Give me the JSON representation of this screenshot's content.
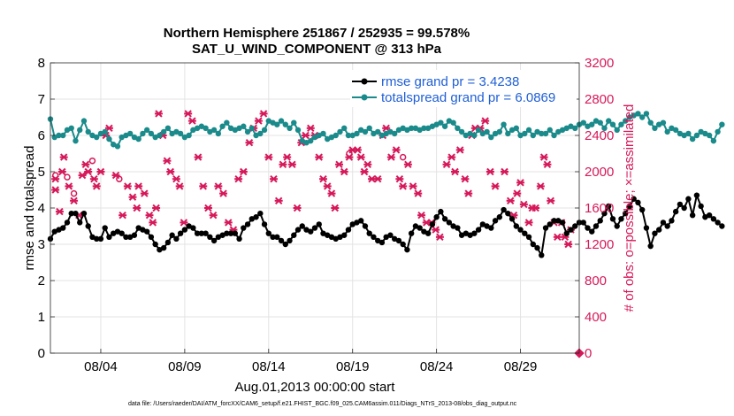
{
  "chart_data": {
    "type": "line",
    "title": "Northern Hemisphere 251867 / 252935 = 99.578%",
    "subtitle": "SAT_U_WIND_COMPONENT @ 313 hPa",
    "xlabel": "Aug.01,2013 00:00:00 start",
    "ylabel_left": "rmse and totalspread",
    "ylabel_right": "# of obs: o=possible; ×=assimilated",
    "footer": "data file: /Users/raeder/DAI/ATM_forcXX/CAM6_setup/f.e21.FHIST_BGC.f09_025.CAM6assim.011/Diags_NTrS_2013-08/obs_diag_output.nc",
    "x_ticks": [
      "08/04",
      "08/09",
      "08/14",
      "08/19",
      "08/24",
      "08/29"
    ],
    "x_tick_days": [
      4,
      9,
      14,
      19,
      24,
      29
    ],
    "x_range_days": [
      1,
      32.5
    ],
    "y_left_ticks": [
      "0",
      "1",
      "2",
      "3",
      "4",
      "5",
      "6",
      "7",
      "8"
    ],
    "y_left_range": [
      0,
      8
    ],
    "y_right_ticks": [
      "0",
      "400",
      "800",
      "1200",
      "1600",
      "2000",
      "2400",
      "2800",
      "3200"
    ],
    "y_right_range": [
      0,
      3200
    ],
    "grid": true,
    "legend_position": "top-right",
    "colors": {
      "rmse": "#000000",
      "totalspread": "#1a8a8a",
      "obs": "#d6185a"
    },
    "series": [
      {
        "name": "rmse grand pr = 3.4238",
        "axis": "left",
        "x_start": 1,
        "x_step": 0.25,
        "values": [
          3.15,
          3.35,
          3.4,
          3.45,
          3.6,
          3.85,
          3.85,
          3.6,
          3.85,
          3.5,
          3.2,
          3.15,
          3.15,
          3.45,
          3.2,
          3.3,
          3.35,
          3.3,
          3.2,
          3.2,
          3.25,
          3.45,
          3.4,
          3.35,
          3.2,
          3.0,
          2.85,
          2.9,
          3.05,
          3.25,
          3.15,
          3.3,
          3.4,
          3.5,
          3.45,
          3.3,
          3.3,
          3.3,
          3.2,
          3.1,
          3.2,
          3.25,
          3.3,
          3.3,
          3.3,
          3.15,
          3.45,
          3.55,
          3.7,
          3.75,
          3.85,
          3.55,
          3.3,
          3.2,
          3.2,
          3.1,
          3.0,
          3.1,
          3.25,
          3.4,
          3.5,
          3.4,
          3.35,
          3.45,
          3.55,
          3.3,
          3.25,
          3.2,
          3.15,
          3.2,
          3.25,
          3.4,
          3.55,
          3.6,
          3.65,
          3.5,
          3.3,
          3.2,
          3.1,
          3.05,
          3.2,
          3.25,
          3.15,
          3.1,
          3.0,
          2.85,
          3.3,
          3.5,
          3.45,
          3.35,
          3.3,
          3.55,
          3.75,
          3.9,
          3.7,
          3.6,
          3.5,
          3.45,
          3.25,
          3.3,
          3.25,
          3.3,
          3.4,
          3.55,
          3.5,
          3.45,
          3.65,
          3.75,
          3.95,
          3.85,
          3.7,
          3.5,
          3.4,
          3.3,
          3.2,
          3.0,
          2.9,
          2.7,
          3.45,
          3.55,
          3.65,
          3.65,
          3.6,
          3.3,
          3.4,
          3.5,
          3.6,
          3.6,
          3.45,
          3.35,
          3.5,
          3.65,
          3.85,
          4.05,
          3.7,
          3.5,
          3.7,
          3.85,
          4.05,
          4.25,
          4.15,
          3.95,
          3.45,
          2.95,
          3.3,
          3.4,
          3.6,
          3.5,
          3.65,
          3.9,
          4.1,
          4.0,
          4.25,
          3.8,
          4.35,
          4.05,
          3.75,
          3.8,
          3.7,
          3.6,
          3.5
        ]
      },
      {
        "name": "totalspread grand pr = 6.0869",
        "axis": "left",
        "x_start": 1,
        "x_step": 0.25,
        "values": [
          6.45,
          5.95,
          6.0,
          6.0,
          6.15,
          6.2,
          5.85,
          6.15,
          6.4,
          6.1,
          6.0,
          5.95,
          6.05,
          6.1,
          5.9,
          5.75,
          5.7,
          5.95,
          6.0,
          6.05,
          5.95,
          5.9,
          6.05,
          6.15,
          6.05,
          5.95,
          6.0,
          6.1,
          6.2,
          6.05,
          6.1,
          6.05,
          5.95,
          6.0,
          6.15,
          6.2,
          6.25,
          6.2,
          6.1,
          6.15,
          6.05,
          6.25,
          6.35,
          6.2,
          6.15,
          6.2,
          6.25,
          6.1,
          6.2,
          6.0,
          6.05,
          6.15,
          6.4,
          6.35,
          6.3,
          6.4,
          6.3,
          6.2,
          6.35,
          6.15,
          5.85,
          5.8,
          5.85,
          5.95,
          6.0,
          6.05,
          5.9,
          5.95,
          6.0,
          6.1,
          6.2,
          6.0,
          6.0,
          6.05,
          6.15,
          6.1,
          6.2,
          6.05,
          6.1,
          6.0,
          6.05,
          6.1,
          6.05,
          6.15,
          6.2,
          6.15,
          6.2,
          6.2,
          6.15,
          6.2,
          6.2,
          6.25,
          6.3,
          6.35,
          6.25,
          6.4,
          6.35,
          6.2,
          6.1,
          6.0,
          6.05,
          6.0,
          6.15,
          6.05,
          6.1,
          5.95,
          6.05,
          6.1,
          6.3,
          6.05,
          6.15,
          6.2,
          6.0,
          6.05,
          6.15,
          6.0,
          6.1,
          6.05,
          6.05,
          6.15,
          6.0,
          6.1,
          6.15,
          6.2,
          6.25,
          6.2,
          6.3,
          6.35,
          6.25,
          6.3,
          6.4,
          6.35,
          6.2,
          6.4,
          6.3,
          6.15,
          6.3,
          6.4,
          6.5,
          6.55,
          6.6,
          6.5,
          6.6,
          6.35,
          6.2,
          6.3,
          6.35,
          6.1,
          6.2,
          6.15,
          6.05,
          6.0,
          6.05,
          5.9,
          6.0,
          6.1,
          6.05,
          6.0,
          5.85,
          6.1,
          6.3
        ]
      },
      {
        "name": "obs_assimilated",
        "axis": "right",
        "marker": "x",
        "values": [
          [
            1.3,
            1920
          ],
          [
            1.3,
            1800
          ],
          [
            1.55,
            1560
          ],
          [
            1.7,
            2000
          ],
          [
            1.8,
            2160
          ],
          [
            2.1,
            1840
          ],
          [
            2.4,
            1680
          ],
          [
            2.7,
            1520
          ],
          [
            2.9,
            1960
          ],
          [
            3.1,
            2080
          ],
          [
            3.25,
            2000
          ],
          [
            3.6,
            1920
          ],
          [
            3.75,
            1840
          ],
          [
            4.0,
            2000
          ],
          [
            4.3,
            2400
          ],
          [
            4.5,
            2480
          ],
          [
            4.9,
            1960
          ],
          [
            5.3,
            1520
          ],
          [
            5.6,
            1840
          ],
          [
            5.9,
            1720
          ],
          [
            6.15,
            1600
          ],
          [
            6.25,
            1840
          ],
          [
            6.6,
            1760
          ],
          [
            6.9,
            1520
          ],
          [
            7.1,
            1440
          ],
          [
            7.3,
            1600
          ],
          [
            7.45,
            2640
          ],
          [
            7.7,
            2400
          ],
          [
            7.95,
            2120
          ],
          [
            8.15,
            2000
          ],
          [
            8.5,
            1920
          ],
          [
            8.7,
            1840
          ],
          [
            8.95,
            1440
          ],
          [
            9.2,
            2640
          ],
          [
            9.45,
            2560
          ],
          [
            9.8,
            2160
          ],
          [
            10.1,
            1840
          ],
          [
            10.4,
            1600
          ],
          [
            10.7,
            1520
          ],
          [
            11.0,
            1840
          ],
          [
            11.3,
            1760
          ],
          [
            11.6,
            1440
          ],
          [
            11.9,
            1360
          ],
          [
            12.2,
            1920
          ],
          [
            12.5,
            2000
          ],
          [
            12.85,
            2320
          ],
          [
            13.1,
            2480
          ],
          [
            13.4,
            2560
          ],
          [
            13.7,
            2640
          ],
          [
            14.0,
            2160
          ],
          [
            14.3,
            1920
          ],
          [
            14.6,
            1680
          ],
          [
            14.85,
            2080
          ],
          [
            15.1,
            2160
          ],
          [
            15.4,
            2080
          ],
          [
            15.7,
            1600
          ],
          [
            15.95,
            2320
          ],
          [
            16.2,
            2400
          ],
          [
            16.5,
            2480
          ],
          [
            16.75,
            2400
          ],
          [
            17.0,
            2160
          ],
          [
            17.25,
            1920
          ],
          [
            17.5,
            1840
          ],
          [
            17.75,
            1760
          ],
          [
            17.95,
            1600
          ],
          [
            18.2,
            2080
          ],
          [
            18.5,
            2000
          ],
          [
            18.8,
            2160
          ],
          [
            19.0,
            2240
          ],
          [
            19.3,
            2240
          ],
          [
            19.5,
            2160
          ],
          [
            19.7,
            2000
          ],
          [
            19.9,
            2080
          ],
          [
            20.15,
            1920
          ],
          [
            20.5,
            1920
          ],
          [
            20.8,
            2400
          ],
          [
            21.0,
            2480
          ],
          [
            21.3,
            2160
          ],
          [
            21.6,
            2240
          ],
          [
            21.8,
            1920
          ],
          [
            22.0,
            1840
          ],
          [
            22.3,
            2080
          ],
          [
            22.6,
            1840
          ],
          [
            22.9,
            1760
          ],
          [
            23.1,
            1520
          ],
          [
            23.4,
            1440
          ],
          [
            23.7,
            1440
          ],
          [
            23.95,
            1360
          ],
          [
            24.2,
            1280
          ],
          [
            24.6,
            2080
          ],
          [
            24.9,
            2160
          ],
          [
            25.1,
            2000
          ],
          [
            25.4,
            2240
          ],
          [
            25.7,
            1920
          ],
          [
            25.9,
            1760
          ],
          [
            26.1,
            2400
          ],
          [
            26.3,
            2480
          ],
          [
            26.6,
            2480
          ],
          [
            26.9,
            2560
          ],
          [
            27.2,
            2000
          ],
          [
            27.5,
            1840
          ],
          [
            27.8,
            2880
          ],
          [
            28.05,
            2000
          ],
          [
            28.4,
            1680
          ],
          [
            28.6,
            1520
          ],
          [
            28.8,
            1760
          ],
          [
            29.0,
            1880
          ],
          [
            29.2,
            1640
          ],
          [
            29.5,
            1440
          ],
          [
            29.7,
            1600
          ],
          [
            29.9,
            1600
          ],
          [
            30.2,
            1840
          ],
          [
            30.4,
            2160
          ],
          [
            30.6,
            2080
          ],
          [
            30.8,
            1680
          ],
          [
            31.0,
            1440
          ],
          [
            31.2,
            1280
          ],
          [
            31.45,
            1440
          ],
          [
            31.65,
            1280
          ],
          [
            31.85,
            1200
          ],
          [
            32.0,
            1360
          ]
        ]
      },
      {
        "name": "obs_possible",
        "axis": "right",
        "marker": "o",
        "values": [
          [
            1.3,
            1960
          ],
          [
            2.0,
            1940
          ],
          [
            2.4,
            1760
          ],
          [
            3.5,
            2120
          ],
          [
            5.1,
            1920
          ],
          [
            18.8,
            2200
          ],
          [
            22.0,
            2160
          ]
        ]
      }
    ],
    "right_axis_zero_marker": [
      32.5,
      0
    ]
  }
}
